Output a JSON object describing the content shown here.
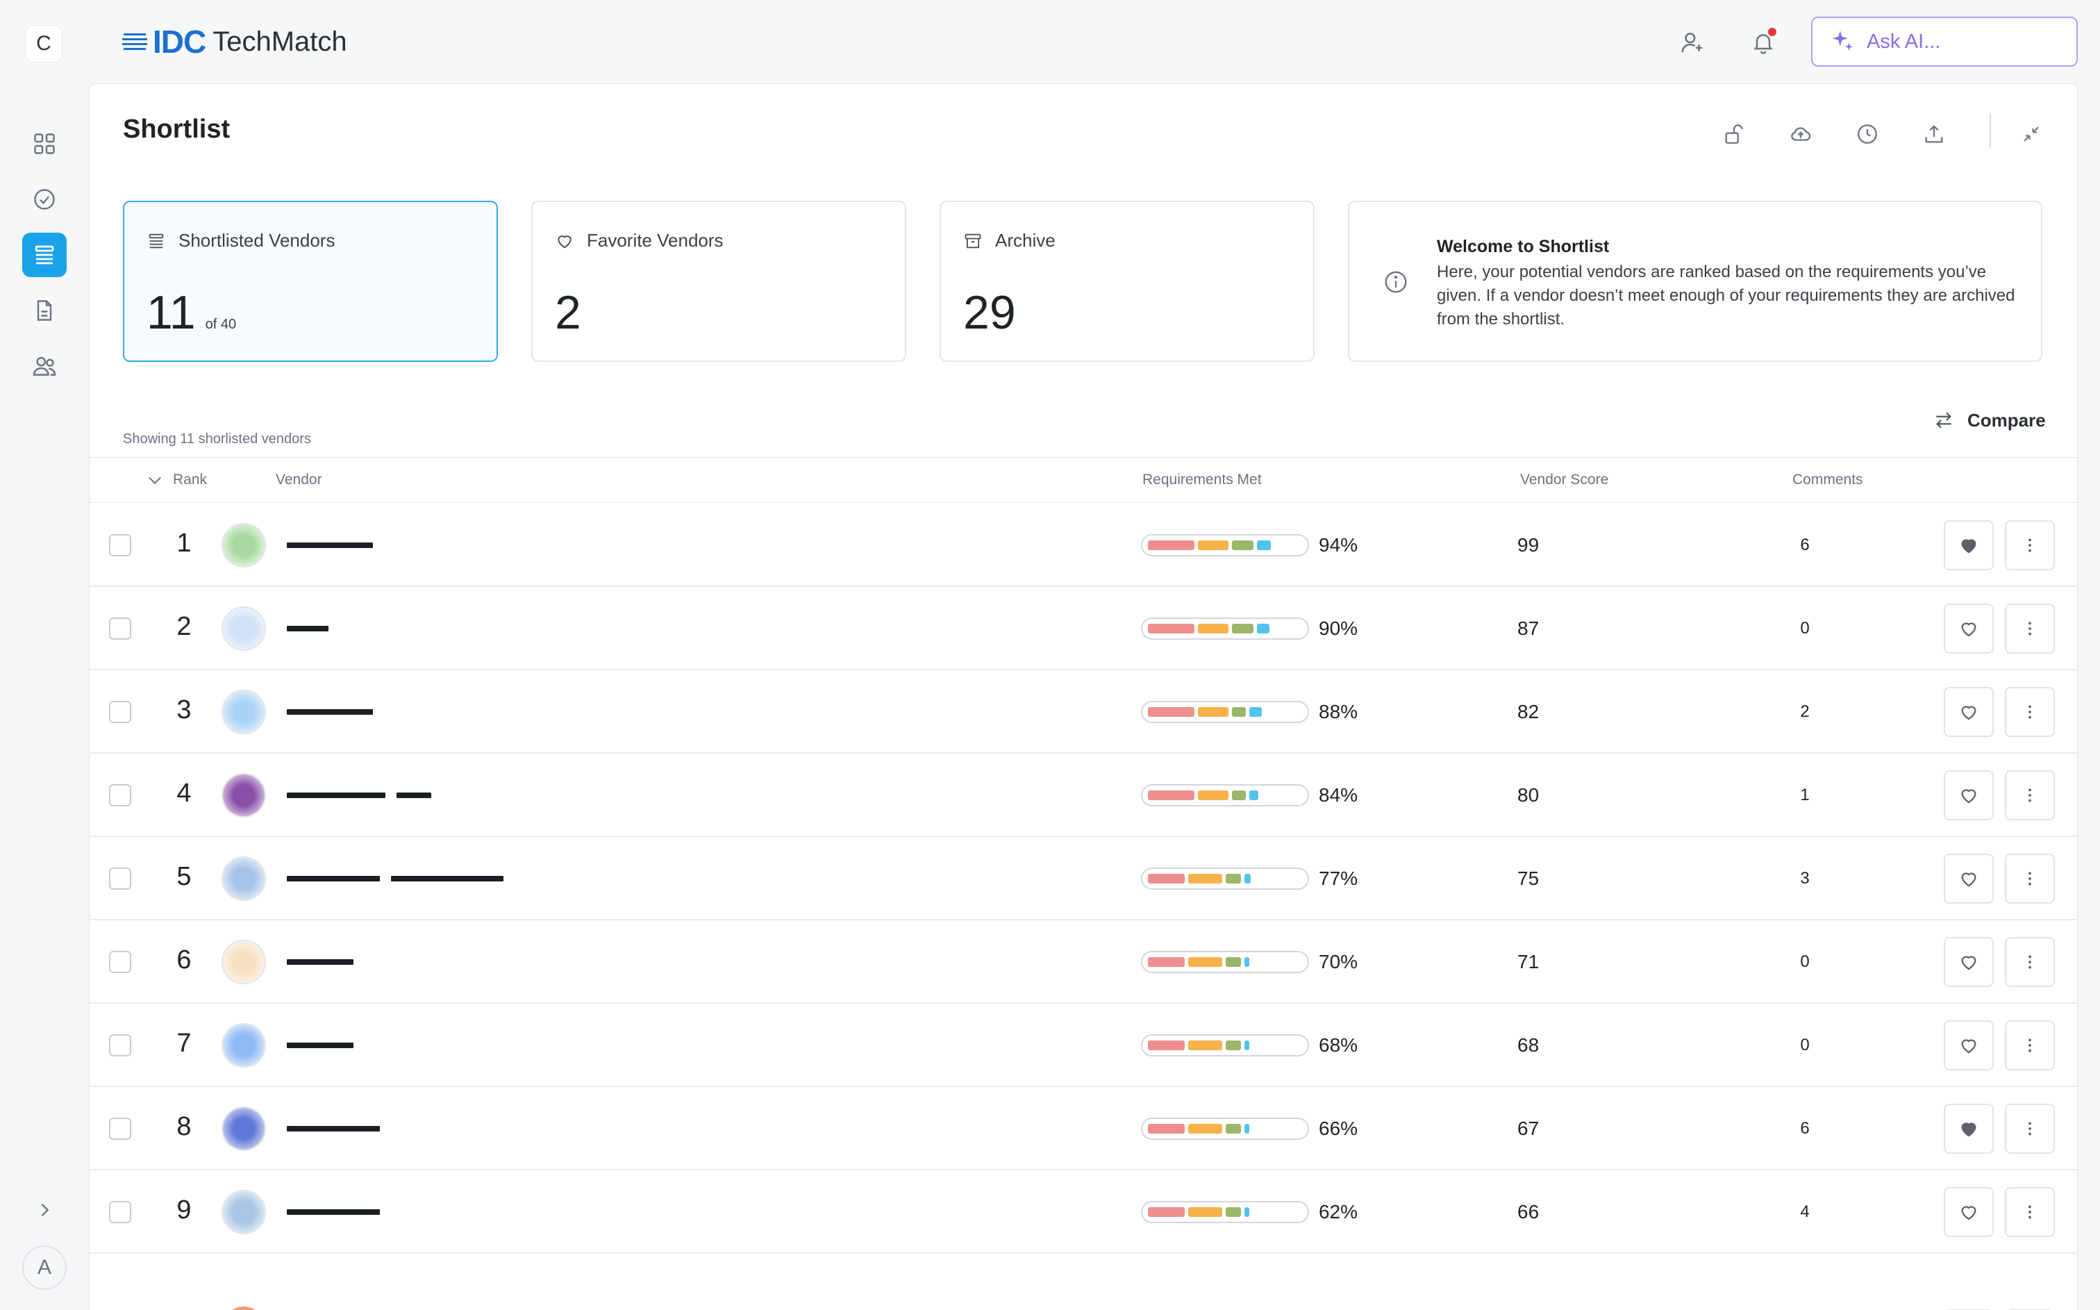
{
  "workspace_badge": "C",
  "user_avatar": "A",
  "brand": {
    "mark": "IDC",
    "name": "TechMatch",
    "color": "#1d6fd0"
  },
  "header": {
    "ask_ai_placeholder": "Ask AI...",
    "accent": "#8d6be6"
  },
  "sidebar": {
    "items": [
      {
        "name": "dashboard",
        "icon": "grid-icon",
        "active": false
      },
      {
        "name": "tasks",
        "icon": "check-circle-icon",
        "active": false
      },
      {
        "name": "shortlist",
        "icon": "list-icon",
        "active": true
      },
      {
        "name": "documents",
        "icon": "document-icon",
        "active": false
      },
      {
        "name": "team",
        "icon": "users-icon",
        "active": false
      }
    ],
    "active_color": "#1aa3e8"
  },
  "page": {
    "title": "Shortlist"
  },
  "cards": {
    "shortlisted": {
      "label": "Shortlisted Vendors",
      "value": "11",
      "sub": "of 40"
    },
    "favorite": {
      "label": "Favorite Vendors",
      "value": "2"
    },
    "archive": {
      "label": "Archive",
      "value": "29"
    }
  },
  "welcome": {
    "title": "Welcome to Shortlist",
    "text": "Here, your potential vendors  are ranked based on the requirements you’ve given. If a vendor doesn’t meet enough of your requirements they are archived from the shortlist."
  },
  "table": {
    "showing": "Showing 11 shorlisted vendors",
    "compare_label": "Compare",
    "columns": {
      "rank": "Rank",
      "vendor": "Vendor",
      "requirements": "Requirements Met",
      "score": "Vendor Score",
      "comments": "Comments"
    },
    "segment_colors": [
      "#ef8e8e",
      "#f8b24a",
      "#9bb76a",
      "#52c4ec"
    ],
    "rows": [
      {
        "rank": "1",
        "requirements_pct": 0.94,
        "requirements": "94%",
        "score": "99",
        "comments": "6",
        "favorite": true,
        "logo_color": "#a7d9a0",
        "segments": [
          0.3,
          0.2,
          0.14,
          0.09
        ],
        "name_bars": [
          124
        ]
      },
      {
        "rank": "2",
        "requirements_pct": 0.9,
        "requirements": "90%",
        "score": "87",
        "comments": "0",
        "favorite": false,
        "logo_color": "#cfe0f7",
        "segments": [
          0.3,
          0.2,
          0.14,
          0.08
        ],
        "name_bars": [
          60
        ]
      },
      {
        "rank": "3",
        "requirements_pct": 0.88,
        "requirements": "88%",
        "score": "82",
        "comments": "2",
        "favorite": false,
        "logo_color": "#a9d2f5",
        "segments": [
          0.3,
          0.2,
          0.09,
          0.08
        ],
        "name_bars": [
          124
        ]
      },
      {
        "rank": "4",
        "requirements_pct": 0.84,
        "requirements": "84%",
        "score": "80",
        "comments": "1",
        "favorite": false,
        "logo_color": "#8a4fa8",
        "segments": [
          0.3,
          0.2,
          0.09,
          0.06
        ],
        "name_bars": [
          142,
          50
        ]
      },
      {
        "rank": "5",
        "requirements_pct": 0.77,
        "requirements": "77%",
        "score": "75",
        "comments": "3",
        "favorite": false,
        "logo_color": "#a5c3e8",
        "segments": [
          0.24,
          0.22,
          0.1,
          0.04
        ],
        "name_bars": [
          134,
          162
        ]
      },
      {
        "rank": "6",
        "requirements_pct": 0.7,
        "requirements": "70%",
        "score": "71",
        "comments": "0",
        "favorite": false,
        "logo_color": "#f7dfc2",
        "segments": [
          0.24,
          0.22,
          0.1,
          0.03
        ],
        "name_bars": [
          96
        ]
      },
      {
        "rank": "7",
        "requirements_pct": 0.68,
        "requirements": "68%",
        "score": "68",
        "comments": "0",
        "favorite": false,
        "logo_color": "#8fb9f2",
        "segments": [
          0.24,
          0.22,
          0.1,
          0.03
        ],
        "name_bars": [
          96
        ]
      },
      {
        "rank": "8",
        "requirements_pct": 0.66,
        "requirements": "66%",
        "score": "67",
        "comments": "6",
        "favorite": true,
        "logo_color": "#5f77d6",
        "segments": [
          0.24,
          0.22,
          0.1,
          0.03
        ],
        "name_bars": [
          134
        ]
      },
      {
        "rank": "9",
        "requirements_pct": 0.62,
        "requirements": "62%",
        "score": "66",
        "comments": "4",
        "favorite": false,
        "logo_color": "#a9c4e6",
        "segments": [
          0.24,
          0.22,
          0.1,
          0.03
        ],
        "name_bars": [
          134
        ]
      }
    ]
  }
}
